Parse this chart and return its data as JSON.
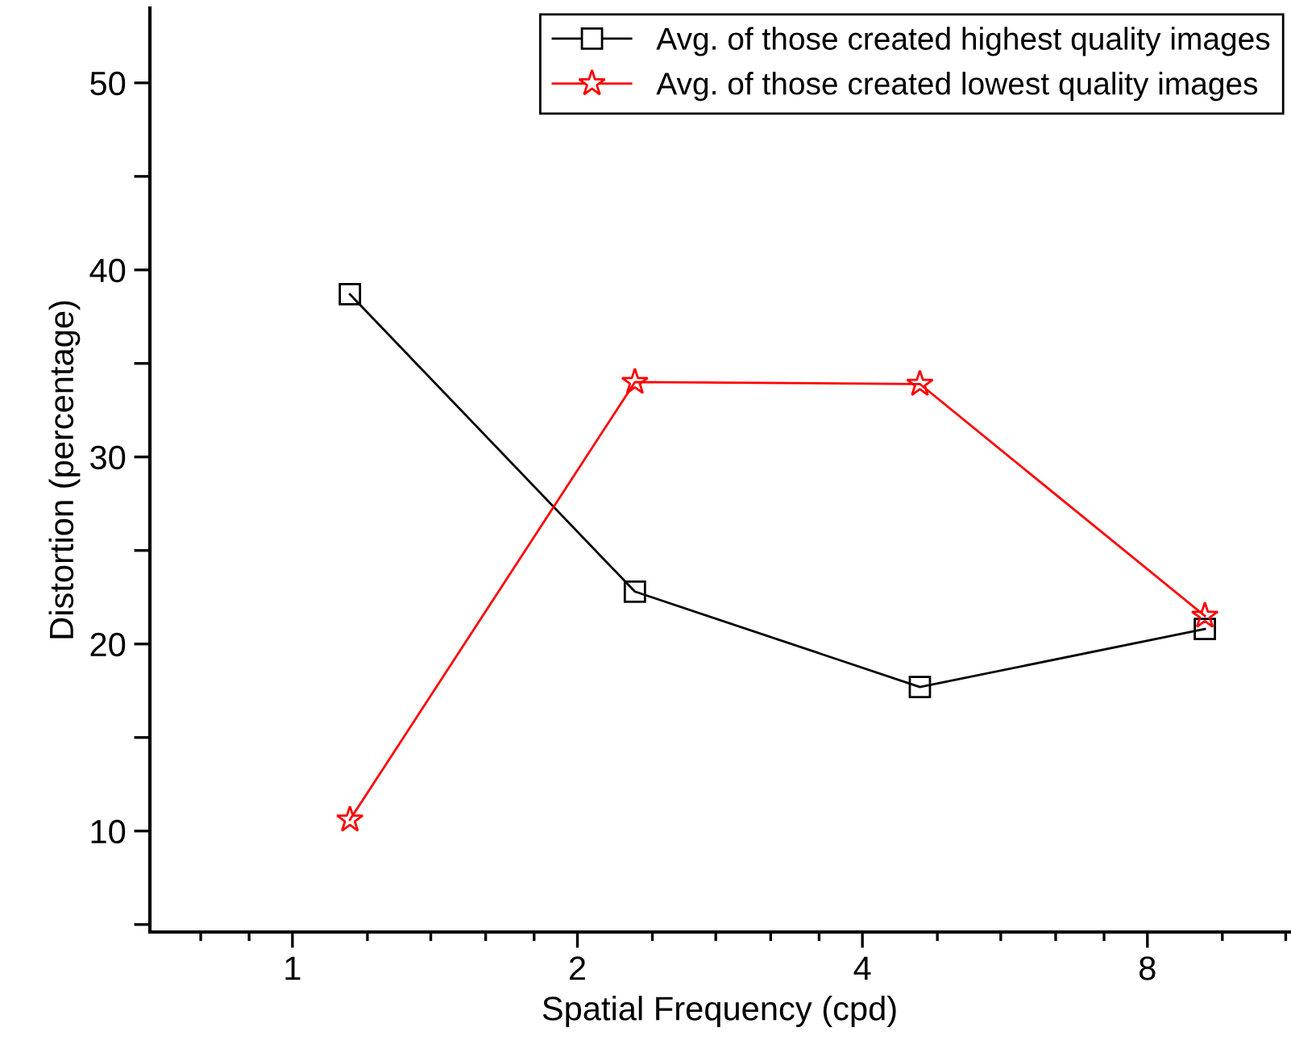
{
  "chart_data": {
    "type": "line",
    "xlabel": "Spatial Frequency (cpd)",
    "ylabel": "Distortion (percentage)",
    "log": "x",
    "xlim": [
      0.707,
      11.3
    ],
    "xticks": [
      1,
      2,
      4,
      8
    ],
    "ylim": [
      4.6,
      54
    ],
    "yticks": [
      {
        "value": 5,
        "label": null
      },
      10,
      {
        "value": 15,
        "label": null
      },
      20,
      {
        "value": 25,
        "label": null
      },
      30,
      {
        "value": 35,
        "label": null
      },
      40,
      {
        "value": 45,
        "label": null
      },
      50
    ],
    "grid": false,
    "legend": "top right",
    "series": [
      {
        "name": "Avg. of those created highest quality images",
        "color": "#000000",
        "marker": "square",
        "x": [
          1.15,
          2.3,
          4.6,
          9.2
        ],
        "values": [
          38.7,
          22.8,
          17.7,
          20.8
        ]
      },
      {
        "name": "Avg. of those created lowest quality images",
        "color": "#ff0000",
        "marker": "star",
        "x": [
          1.15,
          2.3,
          4.6,
          9.2
        ],
        "values": [
          10.6,
          34.0,
          33.9,
          21.5
        ]
      }
    ]
  }
}
